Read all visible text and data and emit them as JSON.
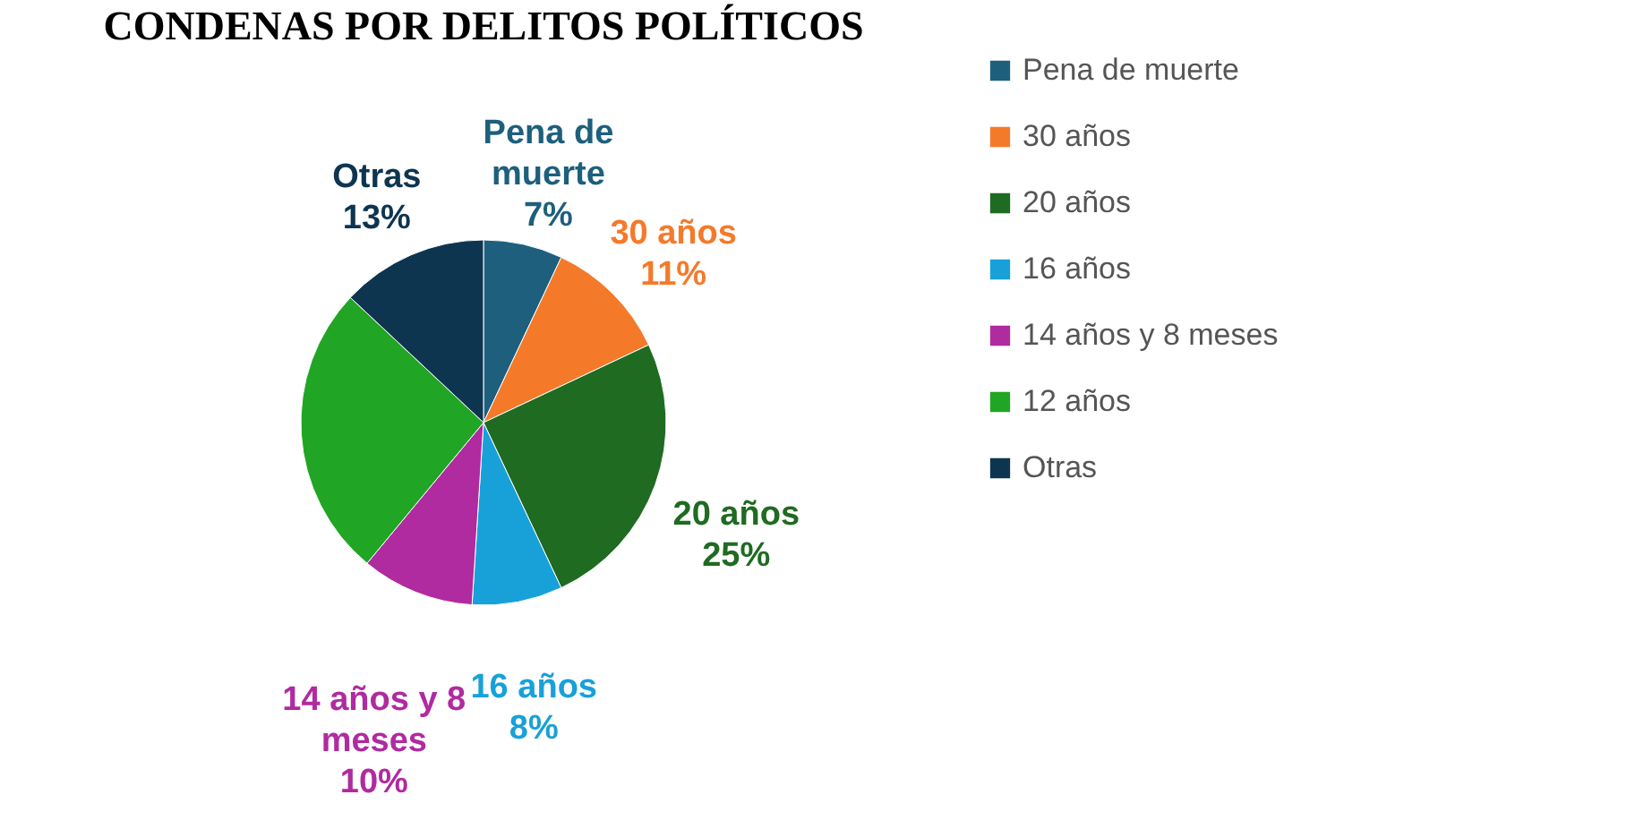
{
  "chart_data": {
    "type": "pie",
    "title": "CONDENAS POR DELITOS POLÍTICOS",
    "categories": [
      "Pena de muerte",
      "30 años",
      "20 años",
      "16 años",
      "14 años y 8 meses",
      "12 años",
      "Otras"
    ],
    "values": [
      7,
      11,
      25,
      8,
      10,
      26,
      13
    ],
    "colors": [
      "#1d5f7d",
      "#f47a2a",
      "#1f6b21",
      "#18a1d9",
      "#b02aa0",
      "#21a524",
      "#0e3550"
    ],
    "value_labels": [
      "7%",
      "11%",
      "25%",
      "8%",
      "10%",
      null,
      "13%"
    ],
    "legend": "right"
  }
}
